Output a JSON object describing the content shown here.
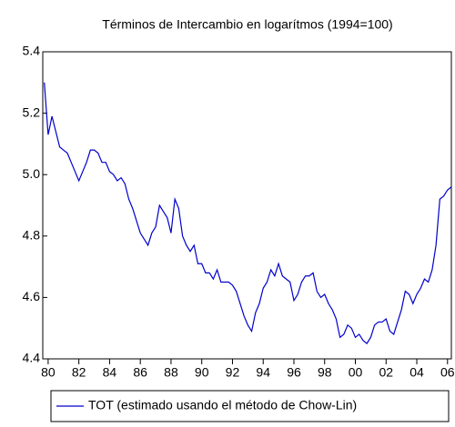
{
  "chart_data": {
    "type": "line",
    "title": "Términos de Intercambio en logarítmos (1994=100)",
    "x": [
      1979.75,
      1980,
      1980.25,
      1980.5,
      1980.75,
      1981,
      1981.25,
      1981.5,
      1981.75,
      1982,
      1982.25,
      1982.5,
      1982.75,
      1983,
      1983.25,
      1983.5,
      1983.75,
      1984,
      1984.25,
      1984.5,
      1984.75,
      1985,
      1985.25,
      1985.5,
      1985.75,
      1986,
      1986.25,
      1986.5,
      1986.75,
      1987,
      1987.25,
      1987.5,
      1987.75,
      1988,
      1988.25,
      1988.5,
      1988.75,
      1989,
      1989.25,
      1989.5,
      1989.75,
      1990,
      1990.25,
      1990.5,
      1990.75,
      1991,
      1991.25,
      1991.5,
      1991.75,
      1992,
      1992.25,
      1992.5,
      1992.75,
      1993,
      1993.25,
      1993.5,
      1993.75,
      1994,
      1994.25,
      1994.5,
      1994.75,
      1995,
      1995.25,
      1995.5,
      1995.75,
      1996,
      1996.25,
      1996.5,
      1996.75,
      1997,
      1997.25,
      1997.5,
      1997.75,
      1998,
      1998.25,
      1998.5,
      1998.75,
      1999,
      1999.25,
      1999.5,
      1999.75,
      2000,
      2000.25,
      2000.5,
      2000.75,
      2001,
      2001.25,
      2001.5,
      2001.75,
      2002,
      2002.25,
      2002.5,
      2002.75,
      2003,
      2003.25,
      2003.5,
      2003.75,
      2004,
      2004.25,
      2004.5,
      2004.75,
      2005,
      2005.25,
      2005.5,
      2005.75,
      2006,
      2006.25
    ],
    "series": [
      {
        "name": "TOT (estimado usando el método de Chow-Lin)",
        "color": "#0000cc",
        "values": [
          5.3,
          5.13,
          5.19,
          5.14,
          5.09,
          5.08,
          5.07,
          5.04,
          5.01,
          4.98,
          5.01,
          5.04,
          5.08,
          5.08,
          5.07,
          5.04,
          5.04,
          5.01,
          5.0,
          4.98,
          4.99,
          4.97,
          4.92,
          4.89,
          4.85,
          4.81,
          4.79,
          4.77,
          4.81,
          4.83,
          4.9,
          4.88,
          4.86,
          4.81,
          4.92,
          4.89,
          4.8,
          4.77,
          4.75,
          4.77,
          4.71,
          4.71,
          4.68,
          4.68,
          4.66,
          4.69,
          4.65,
          4.65,
          4.65,
          4.64,
          4.62,
          4.58,
          4.54,
          4.51,
          4.49,
          4.55,
          4.58,
          4.63,
          4.65,
          4.69,
          4.67,
          4.71,
          4.67,
          4.66,
          4.65,
          4.59,
          4.61,
          4.65,
          4.67,
          4.67,
          4.68,
          4.62,
          4.6,
          4.61,
          4.58,
          4.56,
          4.53,
          4.47,
          4.48,
          4.51,
          4.5,
          4.47,
          4.48,
          4.46,
          4.45,
          4.47,
          4.51,
          4.52,
          4.52,
          4.53,
          4.49,
          4.48,
          4.52,
          4.56,
          4.62,
          4.61,
          4.58,
          4.61,
          4.63,
          4.66,
          4.65,
          4.69,
          4.77,
          4.92,
          4.93,
          4.95,
          4.96
        ]
      }
    ],
    "xlim": [
      1979.65,
      2006.25
    ],
    "xticks": [
      {
        "value": 1980,
        "label": "80"
      },
      {
        "value": 1982,
        "label": "82"
      },
      {
        "value": 1984,
        "label": "84"
      },
      {
        "value": 1986,
        "label": "86"
      },
      {
        "value": 1988,
        "label": "88"
      },
      {
        "value": 1990,
        "label": "90"
      },
      {
        "value": 1992,
        "label": "92"
      },
      {
        "value": 1994,
        "label": "94"
      },
      {
        "value": 1996,
        "label": "96"
      },
      {
        "value": 1998,
        "label": "98"
      },
      {
        "value": 2000,
        "label": "00"
      },
      {
        "value": 2002,
        "label": "02"
      },
      {
        "value": 2004,
        "label": "04"
      },
      {
        "value": 2006,
        "label": "06"
      }
    ],
    "ylim": [
      4.4,
      5.4
    ],
    "yticks": [
      4.4,
      4.6,
      4.8,
      {
        "value": 5,
        "label": "5.0"
      },
      5.2,
      5.4
    ],
    "legend": "bottom"
  }
}
